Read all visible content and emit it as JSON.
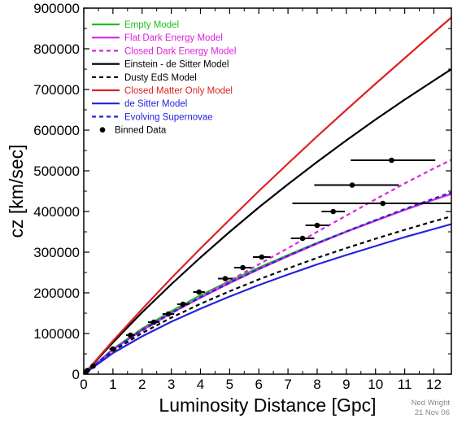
{
  "chart_data": {
    "type": "line",
    "xlabel": "Luminosity Distance [Gpc]",
    "ylabel": "cz [km/sec]",
    "xlim": [
      0,
      12.6
    ],
    "ylim": [
      0,
      900000
    ],
    "xticks": [
      0,
      1,
      2,
      3,
      4,
      5,
      6,
      7,
      8,
      9,
      10,
      11,
      12
    ],
    "yticks": [
      0,
      100000,
      200000,
      300000,
      400000,
      500000,
      600000,
      700000,
      800000,
      900000
    ],
    "legend_position": "top-left",
    "credit": [
      "Ned Wright",
      "21 Nov 06"
    ],
    "series": [
      {
        "name": "Empty Model",
        "color": "#22bb22",
        "dash": false,
        "text_color": "#22bb22",
        "x": [
          0,
          1,
          2,
          3,
          4,
          5,
          6,
          7,
          8,
          9,
          10,
          11,
          12,
          12.6
        ],
        "y": [
          0,
          62000,
          112000,
          155000,
          194000,
          229000,
          262000,
          293000,
          323000,
          351000,
          378000,
          404000,
          429000,
          444000
        ]
      },
      {
        "name": "Flat Dark Energy Model",
        "color": "#dd22dd",
        "dash": false,
        "text_color": "#dd22dd",
        "x": [
          0,
          1,
          2,
          3,
          4,
          5,
          6,
          7,
          8,
          9,
          10,
          11,
          12,
          12.6
        ],
        "y": [
          0,
          60000,
          108000,
          150000,
          188000,
          224000,
          258000,
          290000,
          321000,
          350000,
          377000,
          404000,
          429000,
          443000
        ]
      },
      {
        "name": "Closed Dark Energy Model",
        "color": "#dd22dd",
        "dash": true,
        "text_color": "#dd22dd",
        "x": [
          0,
          1,
          2,
          3,
          4,
          5,
          6,
          7,
          8,
          9,
          10,
          11,
          12,
          12.6
        ],
        "y": [
          0,
          58000,
          106000,
          149000,
          190000,
          230000,
          270000,
          310000,
          350000,
          390000,
          430000,
          469000,
          506000,
          527000
        ]
      },
      {
        "name": "Einstein - de Sitter Model",
        "color": "#000000",
        "dash": false,
        "text_color": "#000000",
        "x": [
          0,
          1,
          2,
          3,
          4,
          5,
          6,
          7,
          8,
          9,
          10,
          11,
          12,
          12.6
        ],
        "y": [
          0,
          78000,
          152000,
          221000,
          287000,
          350000,
          410000,
          467000,
          522000,
          575000,
          626000,
          675000,
          722000,
          750000
        ]
      },
      {
        "name": "Dusty EdS Model",
        "color": "#000000",
        "dash": true,
        "text_color": "#000000",
        "x": [
          0,
          1,
          2,
          3,
          4,
          5,
          6,
          7,
          8,
          9,
          10,
          11,
          12,
          12.6
        ],
        "y": [
          0,
          57000,
          101000,
          139000,
          173000,
          204000,
          233000,
          260000,
          286000,
          310000,
          333000,
          355000,
          376000,
          388000
        ]
      },
      {
        "name": "Closed Matter Only Model",
        "color": "#dd2222",
        "dash": false,
        "text_color": "#dd2222",
        "x": [
          0,
          1,
          2,
          3,
          4,
          5,
          6,
          7,
          8,
          9,
          10,
          11,
          12,
          12.6
        ],
        "y": [
          0,
          82000,
          160000,
          236000,
          309000,
          380000,
          450000,
          518000,
          585000,
          650000,
          714000,
          777000,
          840000,
          877000
        ]
      },
      {
        "name": "de Sitter Model",
        "color": "#2222dd",
        "dash": false,
        "text_color": "#2222dd",
        "x": [
          0,
          1,
          2,
          3,
          4,
          5,
          6,
          7,
          8,
          9,
          10,
          11,
          12,
          12.6
        ],
        "y": [
          0,
          52000,
          93000,
          129000,
          161000,
          191000,
          219000,
          245000,
          270000,
          293000,
          315000,
          337000,
          357000,
          369000
        ]
      },
      {
        "name": "Evolving Supernovae",
        "color": "#2222dd",
        "dash": true,
        "text_color": "#2222dd",
        "x": [
          0,
          1,
          2,
          3,
          4,
          5,
          6,
          7,
          8,
          9,
          10,
          11,
          12,
          12.6
        ],
        "y": [
          0,
          60000,
          109000,
          151000,
          189000,
          225000,
          259000,
          291000,
          322000,
          351000,
          379000,
          406000,
          432000,
          447000
        ]
      }
    ],
    "binned_data": {
      "name": "Binned Data",
      "points": [
        {
          "x": 0.05,
          "y": 3000,
          "xerr_low": 0.05,
          "xerr_high": 0.05
        },
        {
          "x": 0.12,
          "y": 9000,
          "xerr_low": 0.05,
          "xerr_high": 0.05
        },
        {
          "x": 0.32,
          "y": 20000,
          "xerr_low": 0.08,
          "xerr_high": 0.08
        },
        {
          "x": 1.0,
          "y": 62000,
          "xerr_low": 0.12,
          "xerr_high": 0.12
        },
        {
          "x": 1.6,
          "y": 96000,
          "xerr_low": 0.15,
          "xerr_high": 0.15
        },
        {
          "x": 2.4,
          "y": 128000,
          "xerr_low": 0.2,
          "xerr_high": 0.2
        },
        {
          "x": 2.9,
          "y": 148000,
          "xerr_low": 0.2,
          "xerr_high": 0.2
        },
        {
          "x": 3.4,
          "y": 172000,
          "xerr_low": 0.2,
          "xerr_high": 0.2
        },
        {
          "x": 3.95,
          "y": 202000,
          "xerr_low": 0.2,
          "xerr_high": 0.2
        },
        {
          "x": 4.85,
          "y": 235000,
          "xerr_low": 0.25,
          "xerr_high": 0.25
        },
        {
          "x": 5.45,
          "y": 262000,
          "xerr_low": 0.3,
          "xerr_high": 0.3
        },
        {
          "x": 6.1,
          "y": 288000,
          "xerr_low": 0.3,
          "xerr_high": 0.3
        },
        {
          "x": 7.5,
          "y": 334000,
          "xerr_low": 0.4,
          "xerr_high": 0.4
        },
        {
          "x": 8.0,
          "y": 366000,
          "xerr_low": 0.4,
          "xerr_high": 0.4
        },
        {
          "x": 8.55,
          "y": 400000,
          "xerr_low": 0.4,
          "xerr_high": 0.4
        },
        {
          "x": 10.25,
          "y": 420000,
          "xerr_low": 3.1,
          "xerr_high": 2.4
        },
        {
          "x": 9.2,
          "y": 465000,
          "xerr_low": 1.3,
          "xerr_high": 1.6
        },
        {
          "x": 10.55,
          "y": 526000,
          "xerr_low": 1.4,
          "xerr_high": 1.5
        }
      ]
    }
  }
}
